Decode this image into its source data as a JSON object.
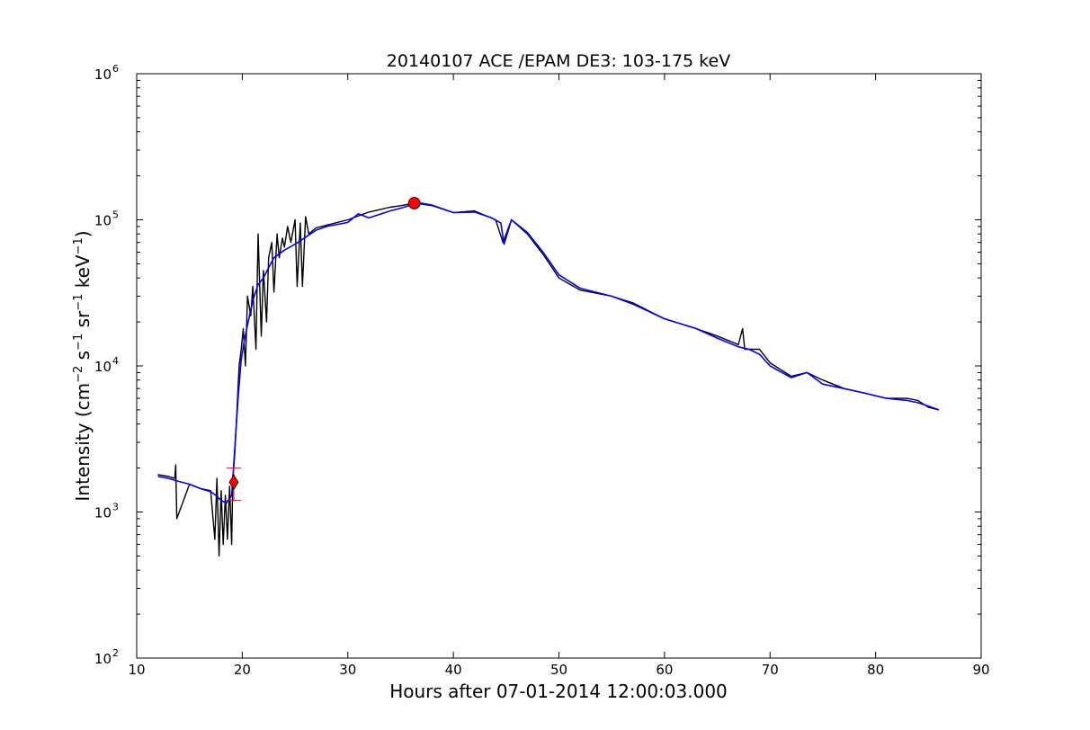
{
  "chart_data": {
    "type": "line",
    "title": "20140107 ACE /EPAM DE3: 103-175 keV",
    "xlabel": "Hours after 07-01-2014 12:00:03.000",
    "ylabel": "Intensity (cm⁻² s⁻¹ sr⁻¹ keV⁻¹)",
    "ylabel_parts": [
      "Intensity (cm",
      "−2",
      " s",
      "−1",
      " sr",
      "−1",
      " keV",
      "−1",
      ")"
    ],
    "xlim": [
      10,
      90
    ],
    "ylim": [
      100,
      1000000
    ],
    "yscale": "log",
    "grid": false,
    "x_ticks": [
      "10",
      "20",
      "30",
      "40",
      "50",
      "60",
      "70",
      "80",
      "90"
    ],
    "y_ticks": [
      {
        "base": "10",
        "exp": "2",
        "value": 100
      },
      {
        "base": "10",
        "exp": "3",
        "value": 1000
      },
      {
        "base": "10",
        "exp": "4",
        "value": 10000
      },
      {
        "base": "10",
        "exp": "5",
        "value": 100000
      },
      {
        "base": "10",
        "exp": "6",
        "value": 1000000
      }
    ],
    "colors": {
      "raw": "#000000",
      "smoothed": "#0000ff",
      "marker": "#ff0000"
    },
    "series": [
      {
        "role": "raw",
        "color": "#000000",
        "x": [
          12,
          13,
          13.6,
          13.7,
          13.8,
          15,
          16,
          17,
          17.4,
          17.6,
          17.8,
          18,
          18.2,
          18.4,
          18.6,
          18.8,
          19,
          19.1,
          19.3,
          19.5,
          19.7,
          19.9,
          20.1,
          20.3,
          20.5,
          20.8,
          21,
          21.3,
          21.5,
          21.8,
          22,
          22.3,
          22.5,
          22.8,
          23,
          23.3,
          23.5,
          23.8,
          24,
          24.3,
          24.6,
          25,
          25.2,
          25.5,
          25.7,
          26,
          26.3,
          27,
          28,
          30,
          32,
          34,
          35,
          36.3,
          37,
          38,
          40,
          42,
          44,
          44.7,
          45.5,
          47,
          48.5,
          50,
          52,
          55,
          57,
          60,
          63,
          65,
          67,
          67.4,
          67.6,
          69,
          70,
          72,
          73.5,
          75,
          77,
          79,
          81,
          83,
          84,
          85,
          86
        ],
        "values": [
          1800,
          1750,
          1700,
          2100,
          900,
          1550,
          1450,
          1400,
          650,
          1700,
          500,
          1400,
          600,
          1300,
          650,
          1500,
          600,
          1600,
          2600,
          5000,
          10000,
          13000,
          18000,
          10000,
          30000,
          22000,
          35000,
          13000,
          80000,
          16000,
          45000,
          20000,
          55000,
          70000,
          32000,
          80000,
          55000,
          75000,
          65000,
          90000,
          70000,
          100000,
          35000,
          95000,
          35000,
          105000,
          80000,
          88000,
          92000,
          100000,
          113000,
          122000,
          125000,
          130000,
          128000,
          125000,
          112000,
          115000,
          100000,
          70000,
          100000,
          80000,
          58000,
          40000,
          33000,
          30000,
          27000,
          21000,
          18000,
          16000,
          14000,
          18000,
          13000,
          13000,
          10500,
          8500,
          9000,
          8000,
          7000,
          6500,
          6000,
          6000,
          5800,
          5200,
          5000
        ]
      },
      {
        "role": "smoothed",
        "color": "#0000ff",
        "x": [
          12,
          13,
          14,
          15,
          16,
          17,
          17.5,
          18,
          18.5,
          19,
          19.3,
          19.6,
          19.9,
          20.2,
          20.5,
          21,
          21.5,
          22,
          22.5,
          23,
          24,
          25,
          26,
          27,
          28,
          30,
          31,
          32,
          34,
          35,
          36.3,
          37,
          38,
          40,
          42,
          43.5,
          44.5,
          44.8,
          45.5,
          47,
          48.5,
          50,
          52,
          55,
          57,
          60,
          63,
          65,
          67,
          68,
          69,
          70,
          72,
          73.5,
          75,
          77,
          79,
          81,
          83,
          84,
          85,
          86
        ],
        "values": [
          1750,
          1700,
          1620,
          1550,
          1450,
          1380,
          1300,
          1200,
          1150,
          1300,
          2800,
          6000,
          11000,
          15000,
          19000,
          28000,
          36000,
          40000,
          47000,
          55000,
          62000,
          68000,
          76000,
          85000,
          90000,
          96000,
          110000,
          103000,
          115000,
          120000,
          128000,
          130000,
          126000,
          112000,
          113000,
          104000,
          95000,
          68000,
          100000,
          82000,
          60000,
          42000,
          34000,
          30000,
          26500,
          21000,
          18000,
          15500,
          13500,
          13000,
          12000,
          10000,
          8300,
          9000,
          7500,
          7000,
          6500,
          6000,
          5800,
          5600,
          5300,
          5000
        ]
      }
    ],
    "markers": [
      {
        "shape": "diamond",
        "x": 19.2,
        "y": 1600,
        "color": "#ff0000",
        "error_low": 1200,
        "error_high": 2000
      },
      {
        "shape": "circle",
        "x": 36.3,
        "y": 130000,
        "color": "#ff0000"
      }
    ]
  }
}
